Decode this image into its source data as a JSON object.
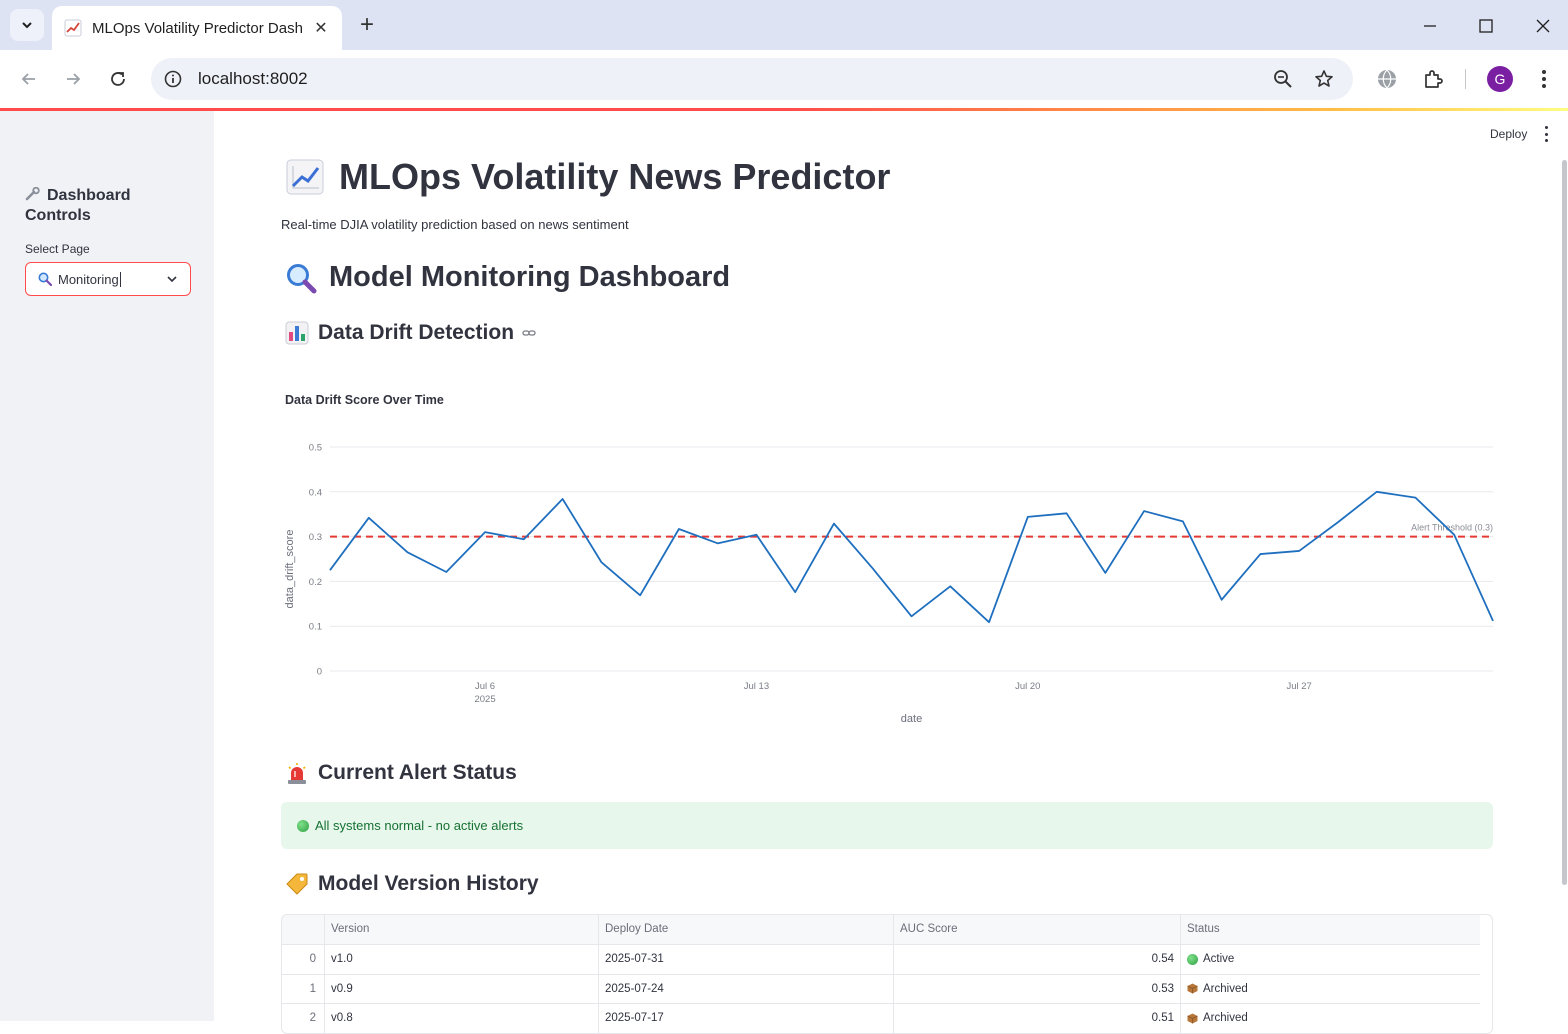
{
  "browser": {
    "tab_title": "MLOps Volatility Predictor Dash",
    "url": "localhost:8002",
    "profile_initial": "G"
  },
  "header": {
    "deploy_label": "Deploy"
  },
  "sidebar": {
    "title": "Dashboard Controls",
    "select_label": "Select Page",
    "select_value": "Monitoring"
  },
  "main": {
    "title": "MLOps Volatility News Predictor",
    "subtitle": "Real-time DJIA volatility prediction based on news sentiment",
    "section_title": "Model Monitoring Dashboard",
    "drift_heading": "Data Drift Detection",
    "alert_heading": "Current Alert Status",
    "alert_message": "All systems normal - no active alerts",
    "history_heading": "Model Version History"
  },
  "chart_data": {
    "type": "line",
    "title": "Data Drift Score Over Time",
    "xlabel": "date",
    "ylabel": "data_drift_score",
    "ylim": [
      0,
      0.5
    ],
    "yticks": [
      "0",
      "0.1",
      "0.2",
      "0.3",
      "0.4",
      "0.5"
    ],
    "xticks": [
      {
        "date": "2025-07-06",
        "label": "Jul 6",
        "sublabel": "2025"
      },
      {
        "date": "2025-07-13",
        "label": "Jul 13",
        "sublabel": ""
      },
      {
        "date": "2025-07-20",
        "label": "Jul 20",
        "sublabel": ""
      },
      {
        "date": "2025-07-27",
        "label": "Jul 27",
        "sublabel": ""
      }
    ],
    "x": [
      "2025-07-02",
      "2025-07-03",
      "2025-07-04",
      "2025-07-05",
      "2025-07-06",
      "2025-07-07",
      "2025-07-08",
      "2025-07-09",
      "2025-07-10",
      "2025-07-11",
      "2025-07-12",
      "2025-07-13",
      "2025-07-14",
      "2025-07-15",
      "2025-07-16",
      "2025-07-17",
      "2025-07-18",
      "2025-07-19",
      "2025-07-20",
      "2025-07-21",
      "2025-07-22",
      "2025-07-23",
      "2025-07-24",
      "2025-07-25",
      "2025-07-26",
      "2025-07-27",
      "2025-07-28",
      "2025-07-29",
      "2025-07-30",
      "2025-07-31",
      "2025-08-01"
    ],
    "series": [
      {
        "values": [
          0.225,
          0.342,
          0.265,
          0.221,
          0.31,
          0.294,
          0.384,
          0.243,
          0.169,
          0.317,
          0.285,
          0.304,
          0.176,
          0.329,
          0.229,
          0.122,
          0.189,
          0.109,
          0.344,
          0.352,
          0.219,
          0.357,
          0.334,
          0.159,
          0.261,
          0.268,
          0.332,
          0.4,
          0.387,
          0.304,
          0.112
        ],
        "color": "#1f6fbf"
      }
    ],
    "threshold": {
      "value": 0.3,
      "label": "Alert Threshold (0.3)",
      "color": "#e53935"
    },
    "grid": true
  },
  "version_table": {
    "columns": [
      "",
      "Version",
      "Deploy Date",
      "AUC Score",
      "Status"
    ],
    "rows": [
      {
        "index": "0",
        "version": "v1.0",
        "date": "2025-07-31",
        "auc": "0.54",
        "status": "Active",
        "status_icon": "green-circle-icon"
      },
      {
        "index": "1",
        "version": "v0.9",
        "date": "2025-07-24",
        "auc": "0.53",
        "status": "Archived",
        "status_icon": "package-icon"
      },
      {
        "index": "2",
        "version": "v0.8",
        "date": "2025-07-17",
        "auc": "0.51",
        "status": "Archived",
        "status_icon": "package-icon"
      }
    ]
  }
}
